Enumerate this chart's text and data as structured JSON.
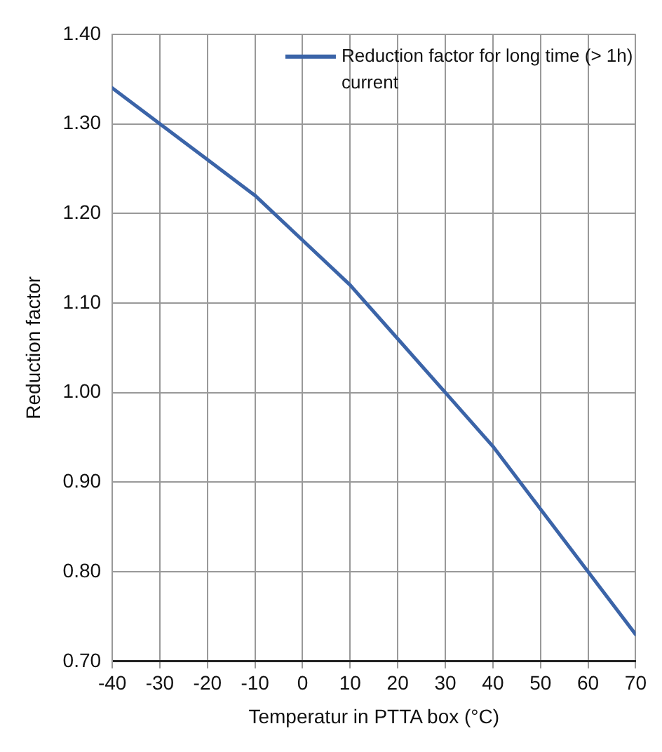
{
  "chart_data": {
    "type": "line",
    "xlabel": "Temperatur in PTTA box (°C)",
    "ylabel": "Reduction factor",
    "x": [
      -40,
      -30,
      -20,
      -10,
      0,
      10,
      20,
      30,
      40,
      50,
      60,
      70
    ],
    "series": [
      {
        "name": "Reduction factor for long time (> 1h) current",
        "color": "#3b64a8",
        "values": [
          1.34,
          1.3,
          1.26,
          1.22,
          1.17,
          1.12,
          1.06,
          1.0,
          0.94,
          0.87,
          0.8,
          0.73
        ]
      }
    ],
    "xlim": [
      -40,
      70
    ],
    "xticks": [
      -40,
      -30,
      -20,
      -10,
      0,
      10,
      20,
      30,
      40,
      50,
      60,
      70
    ],
    "ylim": [
      0.7,
      1.4
    ],
    "yticks": [
      {
        "value": 0.7,
        "label": "0.70"
      },
      {
        "value": 0.8,
        "label": "0.80"
      },
      {
        "value": 0.9,
        "label": "0.90"
      },
      {
        "value": 1.0,
        "label": "1.00"
      },
      {
        "value": 1.1,
        "label": "1.10"
      },
      {
        "value": 1.2,
        "label": "1.20"
      },
      {
        "value": 1.3,
        "label": "1.30"
      },
      {
        "value": 1.4,
        "label": "1.40"
      }
    ],
    "grid": true,
    "legend": "top right",
    "marker": "none",
    "line_style": "solid"
  }
}
